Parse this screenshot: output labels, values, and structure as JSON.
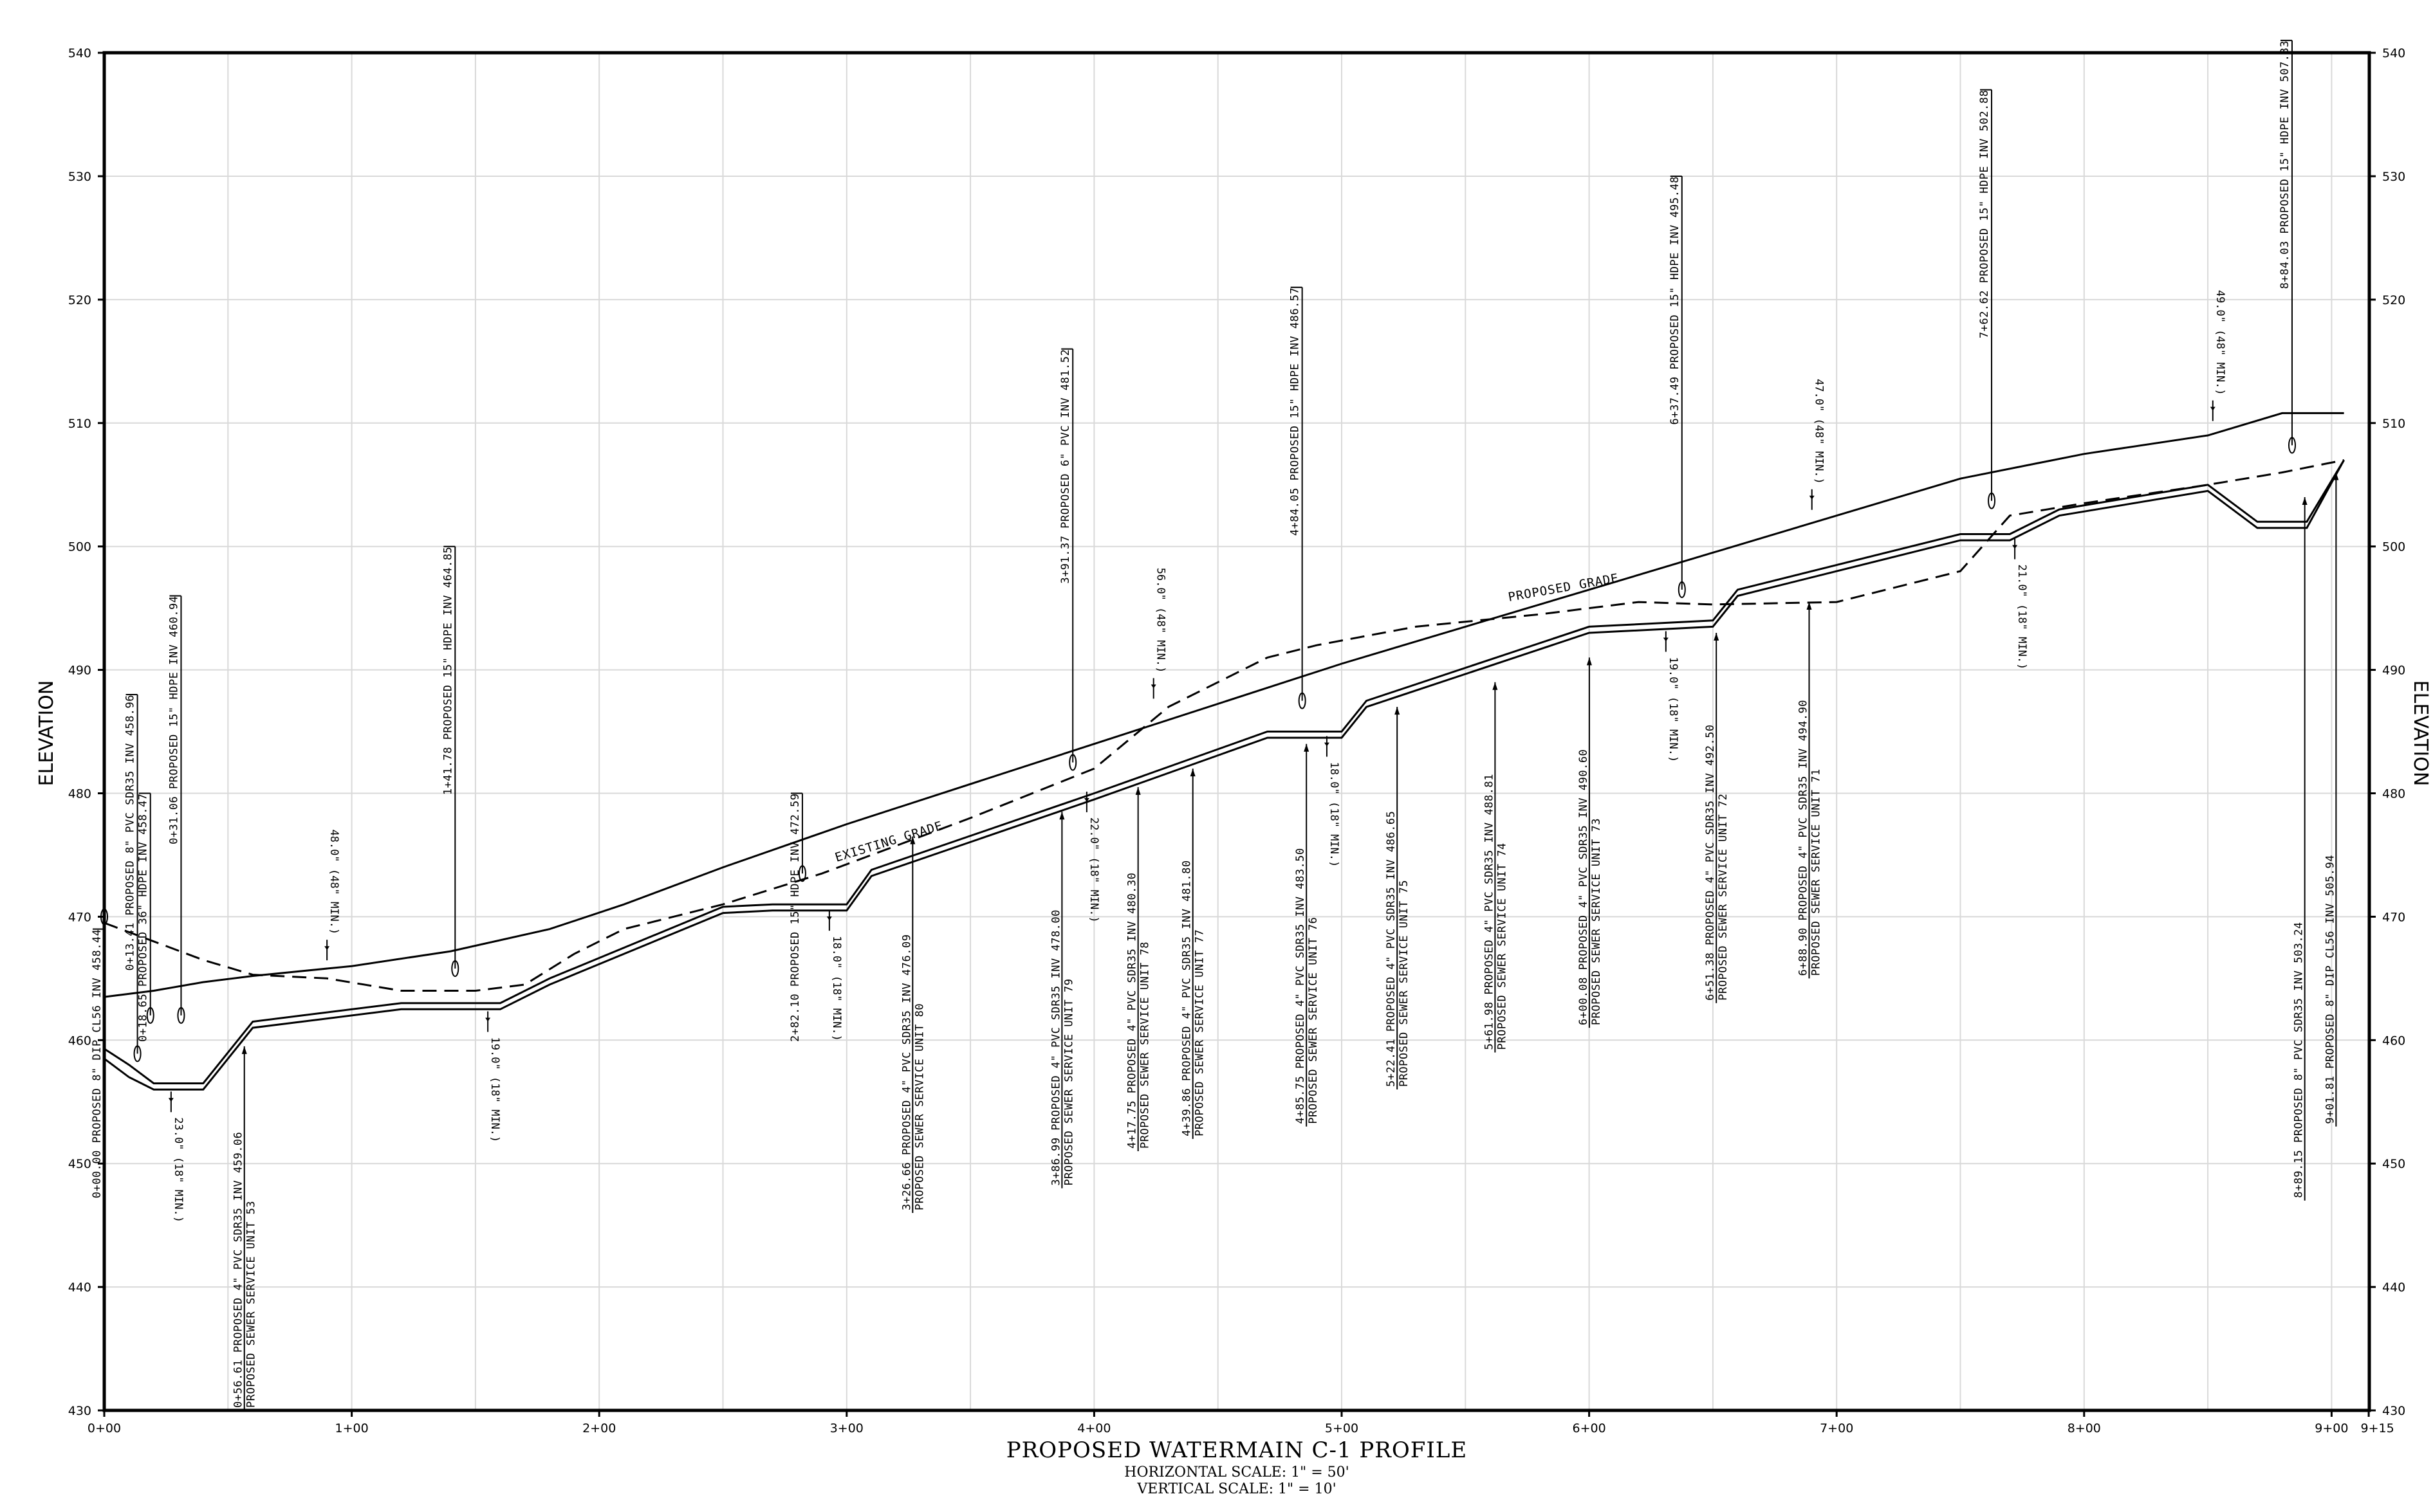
{
  "title": "PROPOSED WATERMAIN C-1 PROFILE",
  "horizontal_scale": "HORIZONTAL SCALE: 1\" = 50'",
  "vertical_scale": "VERTICAL SCALE: 1\" = 10'",
  "axis_title_left": "ELEVATION",
  "axis_title_right": "ELEVATION",
  "y_ticks": [
    430,
    440,
    450,
    460,
    470,
    480,
    490,
    500,
    510,
    520,
    530,
    540
  ],
  "x_ticks": [
    {
      "sta": 0,
      "label": "0+00"
    },
    {
      "sta": 100,
      "label": "1+00"
    },
    {
      "sta": 200,
      "label": "2+00"
    },
    {
      "sta": 300,
      "label": "3+00"
    },
    {
      "sta": 400,
      "label": "4+00"
    },
    {
      "sta": 500,
      "label": "5+00"
    },
    {
      "sta": 600,
      "label": "6+00"
    },
    {
      "sta": 700,
      "label": "7+00"
    },
    {
      "sta": 800,
      "label": "8+00"
    },
    {
      "sta": 900,
      "label": "9+00"
    },
    {
      "sta": 915,
      "label": "9+15"
    }
  ],
  "grade_labels": {
    "proposed": "PROPOSED GRADE",
    "existing": "EXISTING GRADE"
  },
  "profiles": {
    "proposed_grade": [
      [
        0,
        463.5
      ],
      [
        20,
        464
      ],
      [
        40,
        464.7
      ],
      [
        60,
        465.2
      ],
      [
        100,
        466
      ],
      [
        140,
        467.2
      ],
      [
        180,
        469
      ],
      [
        210,
        471
      ],
      [
        250,
        474
      ],
      [
        300,
        477.5
      ],
      [
        400,
        484
      ],
      [
        500,
        490.5
      ],
      [
        600,
        496.5
      ],
      [
        700,
        502.5
      ],
      [
        750,
        505.5
      ],
      [
        800,
        507.5
      ],
      [
        850,
        509
      ],
      [
        880,
        510.8
      ],
      [
        905,
        510.8
      ]
    ],
    "existing_grade": [
      [
        0,
        469.5
      ],
      [
        20,
        468
      ],
      [
        40,
        466.5
      ],
      [
        60,
        465.3
      ],
      [
        90,
        465
      ],
      [
        120,
        464
      ],
      [
        150,
        464
      ],
      [
        170,
        464.5
      ],
      [
        190,
        467
      ],
      [
        210,
        469
      ],
      [
        250,
        471
      ],
      [
        290,
        473.5
      ],
      [
        350,
        478
      ],
      [
        400,
        482
      ],
      [
        430,
        487
      ],
      [
        450,
        489
      ],
      [
        470,
        491
      ],
      [
        490,
        492
      ],
      [
        530,
        493.5
      ],
      [
        580,
        494.5
      ],
      [
        620,
        495.5
      ],
      [
        650,
        495.3
      ],
      [
        700,
        495.5
      ],
      [
        750,
        498
      ],
      [
        770,
        502.5
      ],
      [
        800,
        503.5
      ],
      [
        850,
        505
      ],
      [
        880,
        506
      ],
      [
        905,
        507
      ]
    ],
    "watermain_top": [
      [
        0,
        459.3
      ],
      [
        10,
        458
      ],
      [
        20,
        456.5
      ],
      [
        40,
        456.5
      ],
      [
        60,
        461.5
      ],
      [
        80,
        462
      ],
      [
        120,
        463
      ],
      [
        160,
        463
      ],
      [
        180,
        465
      ],
      [
        250,
        470.8
      ],
      [
        270,
        471
      ],
      [
        300,
        471
      ],
      [
        310,
        473.8
      ],
      [
        400,
        480
      ],
      [
        470,
        485
      ],
      [
        500,
        485
      ],
      [
        510,
        487.5
      ],
      [
        600,
        493.5
      ],
      [
        650,
        494
      ],
      [
        660,
        496.5
      ],
      [
        750,
        501
      ],
      [
        770,
        501
      ],
      [
        790,
        503
      ],
      [
        850,
        505
      ],
      [
        870,
        502
      ],
      [
        890,
        502
      ],
      [
        905,
        507
      ]
    ],
    "watermain_bottom": [
      [
        0,
        458.5
      ],
      [
        10,
        457
      ],
      [
        20,
        456
      ],
      [
        40,
        456
      ],
      [
        60,
        461
      ],
      [
        80,
        461.5
      ],
      [
        120,
        462.5
      ],
      [
        160,
        462.5
      ],
      [
        180,
        464.5
      ],
      [
        250,
        470.3
      ],
      [
        270,
        470.5
      ],
      [
        300,
        470.5
      ],
      [
        310,
        473.3
      ],
      [
        400,
        479.5
      ],
      [
        470,
        484.5
      ],
      [
        500,
        484.5
      ],
      [
        510,
        487
      ],
      [
        600,
        493
      ],
      [
        650,
        493.5
      ],
      [
        660,
        496
      ],
      [
        750,
        500.5
      ],
      [
        770,
        500.5
      ],
      [
        790,
        502.5
      ],
      [
        850,
        504.5
      ],
      [
        870,
        501.5
      ],
      [
        890,
        501.5
      ],
      [
        905,
        507
      ]
    ]
  },
  "top_notes": [
    {
      "sta": 0,
      "elev": 470,
      "top": 469,
      "text": "0+00.00 PROPOSED 8\" DIP CL56 INV 458.44"
    },
    {
      "sta": 13.41,
      "elev": 458.9,
      "top": 488,
      "text": "0+13.41 PROPOSED 8\" PVC SDR35 INV 458.96"
    },
    {
      "sta": 18.65,
      "elev": 462,
      "top": 480,
      "text": "0+18.65 PROPOSED 36\" HDPE INV 458.47"
    },
    {
      "sta": 31.06,
      "elev": 462,
      "top": 496,
      "text": "0+31.06 PROPOSED 15\" HDPE INV 460.94"
    },
    {
      "sta": 141.78,
      "elev": 465.8,
      "top": 500,
      "text": "1+41.78 PROPOSED 15\" HDPE INV 464.85"
    },
    {
      "sta": 282.1,
      "elev": 473.5,
      "top": 480,
      "text": "2+82.10 PROPOSED 15\" HDPE INV 472.59"
    },
    {
      "sta": 391.37,
      "elev": 482.5,
      "top": 516,
      "text": "3+91.37 PROPOSED 6\" PVC INV 481.52"
    },
    {
      "sta": 484.05,
      "elev": 487.5,
      "top": 521,
      "text": "4+84.05 PROPOSED 15\" HDPE INV 486.57"
    },
    {
      "sta": 637.49,
      "elev": 496.5,
      "top": 530,
      "text": "6+37.49 PROPOSED 15\" HDPE INV 495.48"
    },
    {
      "sta": 762.62,
      "elev": 503.7,
      "top": 537,
      "text": "7+62.62 PROPOSED 15\" HDPE INV 502.88"
    },
    {
      "sta": 884.03,
      "elev": 508.2,
      "top": 541,
      "text": "8+84.03 PROPOSED 15\" HDPE INV 507.33"
    }
  ],
  "bottom_notes": [
    {
      "sta": 56.61,
      "elev": 459.5,
      "bot": 430,
      "line1": "0+56.61 PROPOSED 4\" PVC SDR35 INV 459.06",
      "line2": "PROPOSED SEWER SERVICE UNIT 53"
    },
    {
      "sta": 326.66,
      "elev": 476.5,
      "bot": 446,
      "line1": "3+26.66 PROPOSED 4\" PVC SDR35 INV 476.09",
      "line2": "PROPOSED SEWER SERVICE UNIT 80"
    },
    {
      "sta": 386.99,
      "elev": 478.5,
      "bot": 448,
      "line1": "3+86.99 PROPOSED 4\" PVC SDR35 INV 478.00",
      "line2": "PROPOSED SEWER SERVICE UNIT 79"
    },
    {
      "sta": 417.75,
      "elev": 480.5,
      "bot": 451,
      "line1": "4+17.75 PROPOSED 4\" PVC SDR35 INV 480.30",
      "line2": "PROPOSED SEWER SERVICE UNIT 78"
    },
    {
      "sta": 439.86,
      "elev": 482,
      "bot": 452,
      "line1": "4+39.86 PROPOSED 4\" PVC SDR35 INV 481.80",
      "line2": "PROPOSED SEWER SERVICE UNIT 77"
    },
    {
      "sta": 485.75,
      "elev": 484,
      "bot": 453,
      "line1": "4+85.75 PROPOSED 4\" PVC SDR35 INV 483.50",
      "line2": "PROPOSED SEWER SERVICE UNIT 76"
    },
    {
      "sta": 522.41,
      "elev": 487,
      "bot": 456,
      "line1": "5+22.41 PROPOSED 4\" PVC SDR35 INV 486.65",
      "line2": "PROPOSED SEWER SERVICE UNIT 75"
    },
    {
      "sta": 561.98,
      "elev": 489,
      "bot": 459,
      "line1": "5+61.98 PROPOSED 4\" PVC SDR35 INV 488.81",
      "line2": "PROPOSED SEWER SERVICE UNIT 74"
    },
    {
      "sta": 600.08,
      "elev": 491,
      "bot": 461,
      "line1": "6+00.08 PROPOSED 4\" PVC SDR35 INV 490.60",
      "line2": "PROPOSED SEWER SERVICE UNIT 73"
    },
    {
      "sta": 651.38,
      "elev": 493,
      "bot": 463,
      "line1": "6+51.38 PROPOSED 4\" PVC SDR35 INV 492.50",
      "line2": "PROPOSED SEWER SERVICE UNIT 72"
    },
    {
      "sta": 688.9,
      "elev": 495.5,
      "bot": 465,
      "line1": "6+88.90 PROPOSED 4\" PVC SDR35 INV 494.90",
      "line2": "PROPOSED SEWER SERVICE UNIT 71"
    },
    {
      "sta": 889.15,
      "elev": 504,
      "bot": 447,
      "line1": "8+89.15 PROPOSED 8\" PVC SDR35 INV 503.24",
      "line2": ""
    },
    {
      "sta": 901.81,
      "elev": 506,
      "bot": 453,
      "line1": "9+01.81 PROPOSED 8\" DIP CL56 INV 505.94",
      "line2": ""
    }
  ],
  "clearances": [
    {
      "sta": 27,
      "elev": 455,
      "text": "23.0\" (18\" MIN.)",
      "below": true
    },
    {
      "sta": 155,
      "elev": 461.5,
      "text": "19.0\" (18\" MIN.)",
      "below": true
    },
    {
      "sta": 293,
      "elev": 469.7,
      "text": "18.0\" (18\" MIN.)",
      "below": true
    },
    {
      "sta": 397,
      "elev": 479.3,
      "text": "22.0\" (18\" MIN.)",
      "below": true
    },
    {
      "sta": 494,
      "elev": 483.8,
      "text": "18.0\" (18\" MIN.)",
      "below": true
    },
    {
      "sta": 631,
      "elev": 492.3,
      "text": "19.0\" (18\" MIN.)",
      "below": true
    },
    {
      "sta": 772,
      "elev": 499.8,
      "text": "21.0\" (18\" MIN.)",
      "below": true
    },
    {
      "sta": 90,
      "elev": 467.3,
      "text": "48.0\" (48\" MIN.)",
      "below": false
    },
    {
      "sta": 424,
      "elev": 488.5,
      "text": "56.0\" (48\" MIN.)",
      "below": false
    },
    {
      "sta": 690,
      "elev": 503.8,
      "text": "47.0\" (48\" MIN.)",
      "below": false
    },
    {
      "sta": 852,
      "elev": 511,
      "text": "49.0\" (48\" MIN.)",
      "below": false
    }
  ]
}
